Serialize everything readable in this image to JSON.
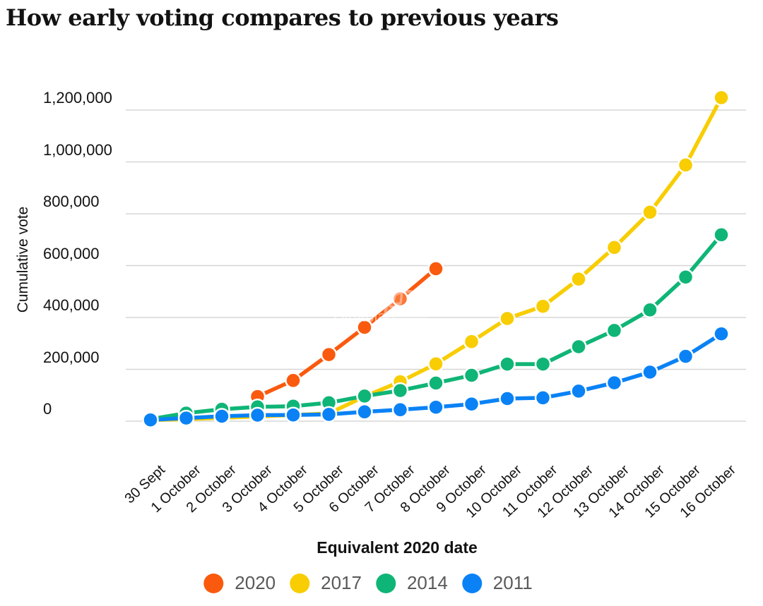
{
  "title": "How early voting compares to previous years",
  "watermark": {
    "cn": "海那边",
    "en": "Hinabian"
  },
  "chart_data": {
    "type": "line",
    "title": "How early voting compares to previous years",
    "xlabel": "Equivalent 2020 date",
    "ylabel": "Cumulative vote",
    "categories": [
      "30 Sept",
      "1 October",
      "2 October",
      "3 October",
      "4 October",
      "5 October",
      "6 October",
      "7 October",
      "8 October",
      "9 October",
      "10 October",
      "11 October",
      "12 October",
      "13 October",
      "14 October",
      "15 October",
      "16 October"
    ],
    "y_ticks": [
      0,
      200000,
      400000,
      600000,
      800000,
      1000000,
      1200000
    ],
    "ylim": [
      0,
      1300000
    ],
    "grid": true,
    "legend_position": "bottom",
    "marker": "circle",
    "series": [
      {
        "name": "2020",
        "color": "#fa5a0e",
        "values": [
          null,
          null,
          null,
          95000,
          157000,
          257000,
          362000,
          472000,
          588000,
          null,
          null,
          null,
          null,
          null,
          null,
          null,
          null
        ]
      },
      {
        "name": "2017",
        "color": "#f8cd01",
        "values": [
          4000,
          8000,
          13000,
          18000,
          24000,
          30000,
          95000,
          152000,
          221000,
          307000,
          396000,
          443000,
          548000,
          670000,
          806000,
          988000,
          1248000
        ]
      },
      {
        "name": "2014",
        "color": "#0fb576",
        "values": [
          8000,
          31000,
          46000,
          55000,
          58000,
          71000,
          97000,
          118000,
          147000,
          177000,
          220000,
          220000,
          287000,
          350000,
          429000,
          556000,
          719000
        ]
      },
      {
        "name": "2011",
        "color": "#0a82f5",
        "values": [
          5000,
          12000,
          19000,
          23000,
          24000,
          26000,
          36000,
          44000,
          54000,
          66000,
          87000,
          90000,
          116000,
          148000,
          189000,
          250000,
          337000
        ]
      }
    ]
  }
}
